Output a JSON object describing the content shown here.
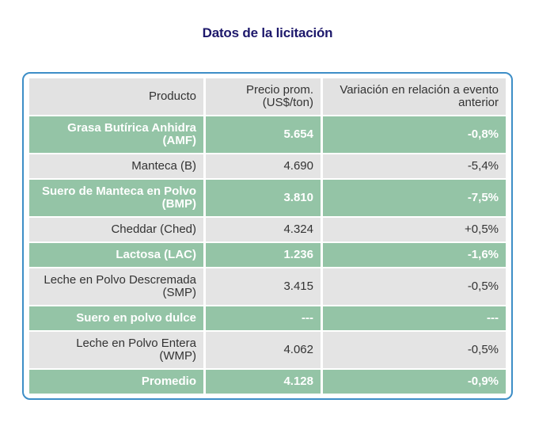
{
  "title": "Datos de la licitación",
  "colors": {
    "title_text": "#1d186b",
    "panel_border": "#3d8ec7",
    "header_bg": "#e2e2e2",
    "row_gray_bg": "#e4e4e4",
    "row_green_bg": "#94c4a6",
    "row_green_text": "#ffffff",
    "row_dark_text": "#333333"
  },
  "table": {
    "headers": {
      "product": "Producto",
      "price": [
        "Precio prom.",
        "(US$/ton)"
      ],
      "variation": [
        "Variación en relación a evento",
        "anterior"
      ]
    },
    "rows": [
      {
        "product": [
          "Grasa Butírica Anhidra",
          "(AMF)"
        ],
        "price": "5.654",
        "variation": "-0,8%",
        "style": "green"
      },
      {
        "product": "Manteca (B)",
        "price": "4.690",
        "variation": "-5,4%",
        "style": "gray"
      },
      {
        "product": [
          "Suero de Manteca en Polvo",
          "(BMP)"
        ],
        "price": "3.810",
        "variation": "-7,5%",
        "style": "green"
      },
      {
        "product": "Cheddar (Ched)",
        "price": "4.324",
        "variation": "+0,5%",
        "style": "gray"
      },
      {
        "product": "Lactosa (LAC)",
        "price": "1.236",
        "variation": "-1,6%",
        "style": "green"
      },
      {
        "product": [
          "Leche en Polvo Descremada",
          "(SMP)"
        ],
        "price": "3.415",
        "variation": "-0,5%",
        "style": "gray"
      },
      {
        "product": "Suero en polvo dulce",
        "price": "---",
        "variation": "---",
        "style": "green"
      },
      {
        "product": [
          "Leche en Polvo Entera",
          "(WMP)"
        ],
        "price": "4.062",
        "variation": "-0,5%",
        "style": "gray"
      },
      {
        "product": "Promedio",
        "price": "4.128",
        "variation": "-0,9%",
        "style": "green"
      }
    ]
  },
  "chart_data": {
    "type": "table",
    "title": "Datos de la licitación",
    "columns": [
      "Producto",
      "Precio prom. (US$/ton)",
      "Variación en relación a evento anterior"
    ],
    "rows": [
      [
        "Grasa Butírica Anhidra (AMF)",
        "5.654",
        "-0,8%"
      ],
      [
        "Manteca (B)",
        "4.690",
        "-5,4%"
      ],
      [
        "Suero de Manteca en Polvo (BMP)",
        "3.810",
        "-7,5%"
      ],
      [
        "Cheddar (Ched)",
        "4.324",
        "+0,5%"
      ],
      [
        "Lactosa (LAC)",
        "1.236",
        "-1,6%"
      ],
      [
        "Leche en Polvo Descremada (SMP)",
        "3.415",
        "-0,5%"
      ],
      [
        "Suero en polvo dulce",
        "---",
        "---"
      ],
      [
        "Leche en Polvo Entera (WMP)",
        "4.062",
        "-0,5%"
      ],
      [
        "Promedio",
        "4.128",
        "-0,9%"
      ]
    ],
    "highlighted_row_indices": [
      0,
      2,
      4,
      6,
      8
    ],
    "layout": {
      "text_align": "right",
      "highlight_color": "#94c4a6",
      "alternate_color": "#e4e4e4"
    }
  }
}
